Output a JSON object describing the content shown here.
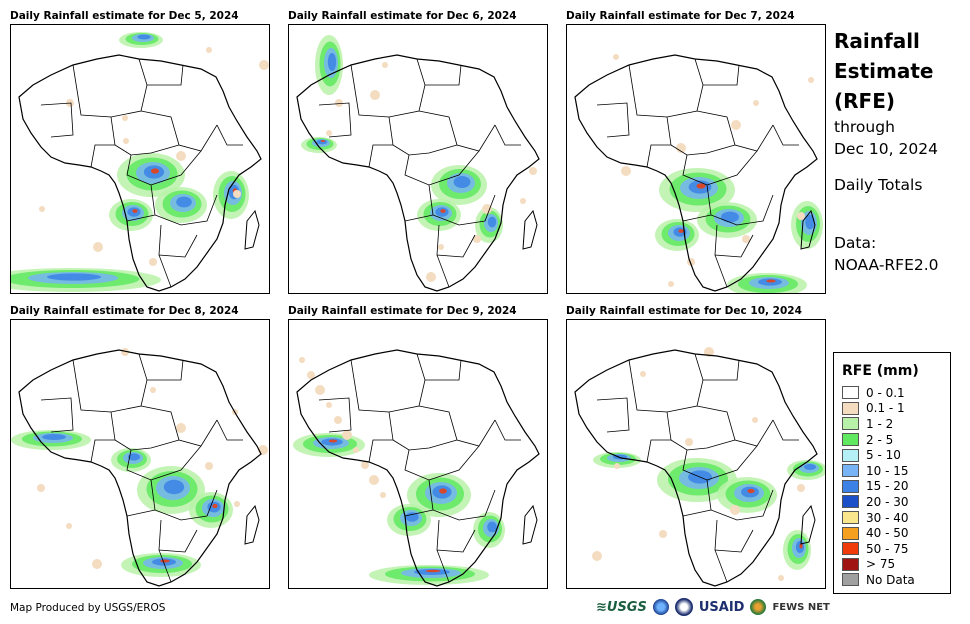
{
  "panels": [
    {
      "title": "Daily Rainfall estimate for Dec 5, 2024"
    },
    {
      "title": "Daily Rainfall estimate for Dec 6, 2024"
    },
    {
      "title": "Daily Rainfall estimate for Dec 7, 2024"
    },
    {
      "title": "Daily Rainfall estimate for Dec 8, 2024"
    },
    {
      "title": "Daily Rainfall estimate for Dec 9, 2024"
    },
    {
      "title": "Daily Rainfall estimate for Dec 10, 2024"
    }
  ],
  "side": {
    "title_line1": "Rainfall",
    "title_line2": "Estimate",
    "title_line3": "(RFE)",
    "through": "through",
    "date": "Dec 10, 2024",
    "totals": "Daily Totals",
    "data_label": "Data:",
    "data_source": "NOAA-RFE2.0"
  },
  "legend": {
    "title": "RFE (mm)",
    "items": [
      {
        "label": "0 - 0.1",
        "color": "#ffffff"
      },
      {
        "label": "0.1 - 1",
        "color": "#f3dcc0"
      },
      {
        "label": "1 - 2",
        "color": "#b8f2a8"
      },
      {
        "label": "2 - 5",
        "color": "#5fe860"
      },
      {
        "label": "5 - 10",
        "color": "#b4f0f5"
      },
      {
        "label": "10 - 15",
        "color": "#78b4f5"
      },
      {
        "label": "15 - 20",
        "color": "#3c82e6"
      },
      {
        "label": "20 - 30",
        "color": "#1c50c8"
      },
      {
        "label": "30 - 40",
        "color": "#fae68c"
      },
      {
        "label": "40 - 50",
        "color": "#f5a01e"
      },
      {
        "label": "50 - 75",
        "color": "#f03c0a"
      },
      {
        "label": "> 75",
        "color": "#a01414"
      },
      {
        "label": "No Data",
        "color": "#a0a0a0"
      }
    ]
  },
  "footer": {
    "credit": "Map Produced by USGS/EROS",
    "logos": {
      "usgs": "≋USGS",
      "usaid": "USAID",
      "fews": "FEWS NET"
    }
  }
}
